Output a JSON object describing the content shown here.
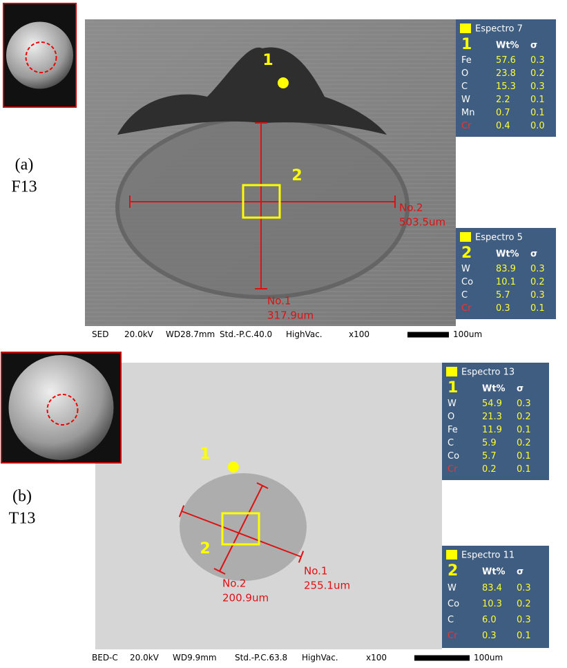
{
  "panels": [
    {
      "label": "(a)",
      "sample": "F13",
      "annotations": {
        "point": "1",
        "area": "2"
      },
      "measurements": [
        {
          "name": "No.1",
          "length": "317.9um"
        },
        {
          "name": "No.2",
          "length": "503.5um"
        }
      ],
      "status_bar": [
        "SED",
        "20.0kV",
        "WD28.7mm",
        "Std.-P.C.40.0",
        "HighVac.",
        "x100",
        "100um"
      ],
      "spectra": [
        {
          "title": "Espectro 7",
          "marker": "1",
          "columns": [
            "Wt%",
            "σ"
          ],
          "rows": [
            [
              "Fe",
              "57.6",
              "0.3"
            ],
            [
              "O",
              "23.8",
              "0.2"
            ],
            [
              "C",
              "15.3",
              "0.3"
            ],
            [
              "W",
              "2.2",
              "0.1"
            ],
            [
              "Mn",
              "0.7",
              "0.1"
            ],
            [
              "Cr",
              "0.4",
              "0.0"
            ]
          ]
        },
        {
          "title": "Espectro 5",
          "marker": "2",
          "columns": [
            "Wt%",
            "σ"
          ],
          "rows": [
            [
              "W",
              "83.9",
              "0.3"
            ],
            [
              "Co",
              "10.1",
              "0.2"
            ],
            [
              "C",
              "5.7",
              "0.3"
            ],
            [
              "Cr",
              "0.3",
              "0.1"
            ]
          ]
        }
      ]
    },
    {
      "label": "(b)",
      "sample": "T13",
      "annotations": {
        "point": "1",
        "area": "2"
      },
      "measurements": [
        {
          "name": "No.1",
          "length": "255.1um"
        },
        {
          "name": "No.2",
          "length": "200.9um"
        }
      ],
      "status_bar": [
        "BED-C",
        "20.0kV",
        "WD9.9mm",
        "Std.-P.C.63.8",
        "HighVac.",
        "x100",
        "100um"
      ],
      "spectra": [
        {
          "title": "Espectro 13",
          "marker": "1",
          "columns": [
            "Wt%",
            "σ"
          ],
          "rows": [
            [
              "W",
              "54.9",
              "0.3"
            ],
            [
              "O",
              "21.3",
              "0.2"
            ],
            [
              "Fe",
              "11.9",
              "0.1"
            ],
            [
              "C",
              "5.9",
              "0.2"
            ],
            [
              "Co",
              "5.7",
              "0.1"
            ],
            [
              "Cr",
              "0.2",
              "0.1"
            ]
          ]
        },
        {
          "title": "Espectro 11",
          "marker": "2",
          "columns": [
            "Wt%",
            "σ"
          ],
          "rows": [
            [
              "W",
              "83.4",
              "0.3"
            ],
            [
              "Co",
              "10.3",
              "0.2"
            ],
            [
              "C",
              "6.0",
              "0.3"
            ],
            [
              "Cr",
              "0.3",
              "0.1"
            ]
          ]
        }
      ]
    }
  ]
}
